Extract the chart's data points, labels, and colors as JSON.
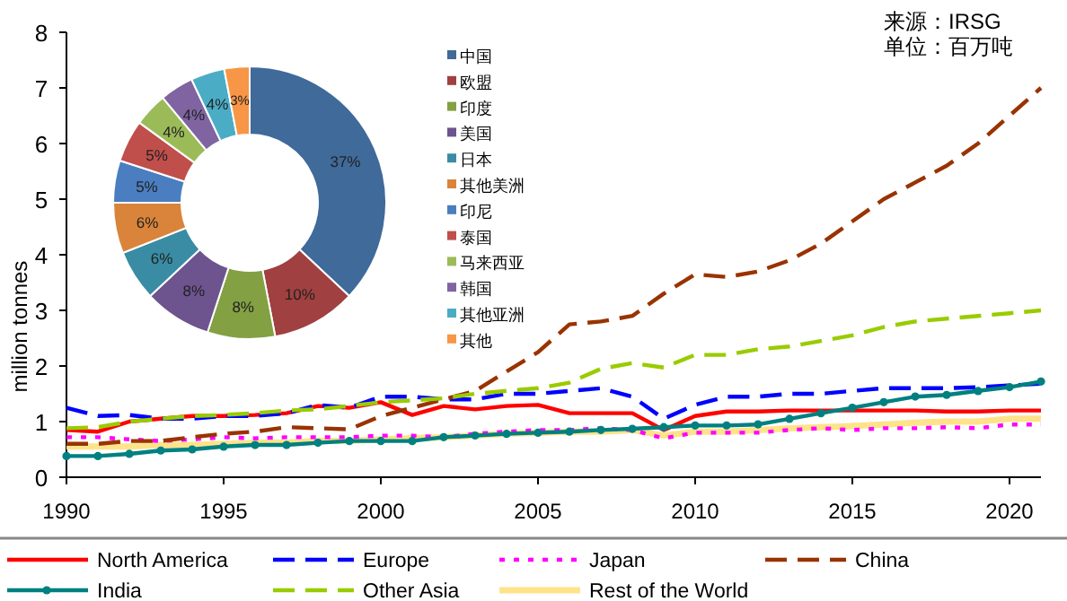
{
  "chart_data": [
    {
      "type": "line",
      "ylabel": "million tonnes",
      "xlim": [
        1990,
        2021
      ],
      "xticks": [
        1990,
        1995,
        2000,
        2005,
        2010,
        2015,
        2020
      ],
      "ylim": [
        0,
        8
      ],
      "yticks": [
        0,
        1,
        2,
        3,
        4,
        5,
        6,
        7,
        8
      ],
      "grid": false,
      "legend": "bottom",
      "annotations": [
        "来源：IRSG",
        "单位：百万吨"
      ],
      "x": [
        1990,
        1991,
        1992,
        1993,
        1994,
        1995,
        1996,
        1997,
        1998,
        1999,
        2000,
        2001,
        2002,
        2003,
        2004,
        2005,
        2006,
        2007,
        2008,
        2009,
        2010,
        2011,
        2012,
        2013,
        2014,
        2015,
        2016,
        2017,
        2018,
        2019,
        2020,
        2021
      ],
      "series": [
        {
          "name": "North America",
          "color": "#ff0000",
          "line_style": "solid",
          "values": [
            0.85,
            0.82,
            1.0,
            1.05,
            1.1,
            1.1,
            1.12,
            1.15,
            1.28,
            1.25,
            1.35,
            1.12,
            1.28,
            1.22,
            1.28,
            1.3,
            1.15,
            1.15,
            1.15,
            0.85,
            1.1,
            1.18,
            1.18,
            1.2,
            1.2,
            1.2,
            1.2,
            1.2,
            1.18,
            1.18,
            1.2,
            1.2
          ]
        },
        {
          "name": "Europe",
          "color": "#0000ff",
          "line_style": "dashed",
          "values": [
            1.25,
            1.1,
            1.12,
            1.05,
            1.05,
            1.1,
            1.1,
            1.15,
            1.3,
            1.25,
            1.45,
            1.45,
            1.4,
            1.4,
            1.5,
            1.5,
            1.55,
            1.6,
            1.45,
            1.05,
            1.3,
            1.45,
            1.45,
            1.5,
            1.5,
            1.55,
            1.6,
            1.6,
            1.6,
            1.62,
            1.65,
            1.68
          ]
        },
        {
          "name": "Japan",
          "color": "#ff00ff",
          "line_style": "dotted",
          "values": [
            0.72,
            0.72,
            0.68,
            0.65,
            0.68,
            0.72,
            0.7,
            0.72,
            0.72,
            0.72,
            0.75,
            0.75,
            0.72,
            0.78,
            0.82,
            0.85,
            0.85,
            0.88,
            0.85,
            0.7,
            0.8,
            0.8,
            0.8,
            0.85,
            0.88,
            0.85,
            0.88,
            0.88,
            0.9,
            0.88,
            0.95,
            0.95
          ]
        },
        {
          "name": "China",
          "color": "#993300",
          "line_style": "dashed",
          "values": [
            0.6,
            0.6,
            0.65,
            0.65,
            0.72,
            0.78,
            0.82,
            0.9,
            0.88,
            0.86,
            1.1,
            1.25,
            1.4,
            1.55,
            1.9,
            2.25,
            2.75,
            2.8,
            2.9,
            3.3,
            3.65,
            3.6,
            3.7,
            3.9,
            4.2,
            4.6,
            5.0,
            5.3,
            5.6,
            6.0,
            6.5,
            7.0
          ]
        },
        {
          "name": "India",
          "color": "#008080",
          "line_style": "solid",
          "marker": "circle",
          "values": [
            0.38,
            0.38,
            0.42,
            0.48,
            0.5,
            0.55,
            0.58,
            0.58,
            0.62,
            0.65,
            0.65,
            0.65,
            0.72,
            0.75,
            0.78,
            0.8,
            0.82,
            0.85,
            0.87,
            0.9,
            0.93,
            0.93,
            0.95,
            1.05,
            1.15,
            1.25,
            1.35,
            1.45,
            1.48,
            1.55,
            1.62,
            1.72
          ]
        },
        {
          "name": "Other Asia",
          "color": "#99cc00",
          "line_style": "dashed",
          "values": [
            0.88,
            0.9,
            1.0,
            1.05,
            1.1,
            1.12,
            1.15,
            1.2,
            1.22,
            1.28,
            1.35,
            1.38,
            1.42,
            1.5,
            1.55,
            1.6,
            1.7,
            1.95,
            2.05,
            1.97,
            2.2,
            2.2,
            2.3,
            2.35,
            2.45,
            2.55,
            2.7,
            2.8,
            2.85,
            2.9,
            2.95,
            3.0
          ]
        },
        {
          "name": "Rest of the World",
          "color": "#ffe38a",
          "line_style": "solid",
          "values": [
            0.55,
            0.55,
            0.55,
            0.58,
            0.58,
            0.6,
            0.62,
            0.62,
            0.65,
            0.65,
            0.68,
            0.7,
            0.72,
            0.75,
            0.78,
            0.8,
            0.82,
            0.82,
            0.85,
            0.75,
            0.82,
            0.82,
            0.85,
            0.88,
            0.9,
            0.92,
            0.95,
            0.98,
            1.0,
            1.0,
            1.05,
            1.05
          ]
        }
      ]
    },
    {
      "type": "donut",
      "legend": "right",
      "categories": [
        "中国",
        "欧盟",
        "印度",
        "美国",
        "日本",
        "其他美洲",
        "印尼",
        "泰国",
        "马来西亚",
        "韩国",
        "其他亚洲",
        "其他"
      ],
      "values": [
        37,
        10,
        8,
        8,
        6,
        6,
        5,
        5,
        4,
        4,
        4,
        3
      ],
      "value_labels": [
        "37%",
        "10%",
        "8%",
        "8%",
        "6%",
        "6%",
        "5%",
        "5%",
        "4%",
        "4%",
        "4%",
        "3%"
      ],
      "colors": [
        "#3f6a9a",
        "#a04040",
        "#83a043",
        "#6d548f",
        "#3a8ca4",
        "#d9843a",
        "#4a7ec0",
        "#c04e4b",
        "#9bbb59",
        "#8064a2",
        "#4bacc6",
        "#f79646"
      ]
    }
  ]
}
